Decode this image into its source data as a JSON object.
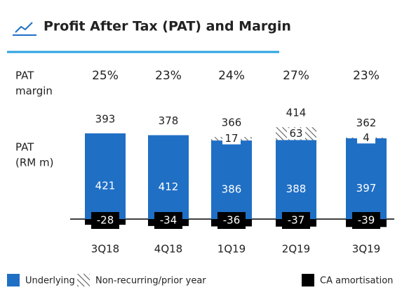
{
  "chart_data": {
    "type": "stacked_bar",
    "title": "Profit After Tax (PAT) and Margin",
    "margin_row_label": [
      "PAT",
      "margin"
    ],
    "pat_row_label": [
      "PAT",
      "(RM m)"
    ],
    "categories": [
      "3Q18",
      "4Q18",
      "1Q19",
      "2Q19",
      "3Q19"
    ],
    "margins": [
      25,
      23,
      24,
      27,
      23
    ],
    "margin_labels": [
      "25%",
      "23%",
      "24%",
      "27%",
      "23%"
    ],
    "totals": [
      393,
      378,
      366,
      414,
      362
    ],
    "series": [
      {
        "name": "Underlying",
        "color": "#1f6fc5",
        "values": [
          421,
          412,
          386,
          388,
          397
        ]
      },
      {
        "name": "Non-recurring/prior year",
        "color": "hatch",
        "values": [
          null,
          null,
          17,
          63,
          4
        ]
      },
      {
        "name": "CA amortisation",
        "color": "#000000",
        "values": [
          -28,
          -34,
          -36,
          -37,
          -39
        ]
      }
    ]
  }
}
